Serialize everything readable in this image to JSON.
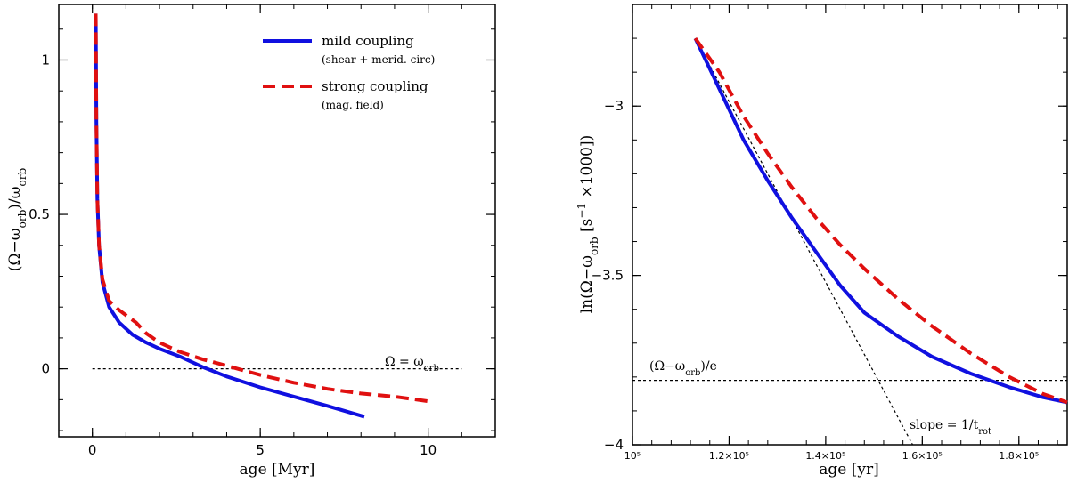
{
  "colors": {
    "mild": "#1010e0",
    "strong": "#e01010",
    "axis": "#000000"
  },
  "chart_data": [
    {
      "type": "line",
      "xlabel": "age [Myr]",
      "ylabel": "(Ω−ω_orb)/ω_orb",
      "xlim": [
        -1,
        12
      ],
      "ylim": [
        -0.22,
        1.18
      ],
      "xticks": [
        0,
        5,
        10
      ],
      "xtick_labels": [
        "0",
        "5",
        "10"
      ],
      "yticks": [
        0,
        0.5,
        1
      ],
      "ytick_labels": [
        "0",
        "0.5",
        "1"
      ],
      "hline": {
        "y": 0,
        "x_from": 0,
        "x_to": 11,
        "label": "Ω = ω_orb"
      },
      "legend": [
        {
          "name": "mild coupling",
          "sub": "(shear + merid. circ)",
          "style": "solid"
        },
        {
          "name": "strong coupling",
          "sub": "(mag. field)",
          "style": "dashed"
        }
      ],
      "series": [
        {
          "name": "mild coupling",
          "style": "solid",
          "x": [
            0.1,
            0.12,
            0.15,
            0.2,
            0.3,
            0.5,
            0.8,
            1.2,
            1.6,
            2.0,
            2.6,
            3.3,
            4.0,
            5.0,
            6.0,
            7.0,
            8.1
          ],
          "y": [
            1.15,
            0.8,
            0.55,
            0.4,
            0.28,
            0.2,
            0.15,
            0.11,
            0.085,
            0.065,
            0.04,
            0.005,
            -0.025,
            -0.06,
            -0.09,
            -0.12,
            -0.155
          ]
        },
        {
          "name": "strong coupling",
          "style": "dashed",
          "x": [
            0.1,
            0.12,
            0.15,
            0.2,
            0.3,
            0.5,
            0.8,
            1.3,
            1.6,
            2.0,
            2.6,
            3.3,
            4.0,
            5.0,
            6.0,
            7.0,
            8.0,
            9.0,
            10.0
          ],
          "y": [
            1.15,
            0.8,
            0.55,
            0.4,
            0.29,
            0.22,
            0.19,
            0.15,
            0.115,
            0.085,
            0.055,
            0.03,
            0.01,
            -0.02,
            -0.045,
            -0.065,
            -0.08,
            -0.09,
            -0.105
          ]
        }
      ]
    },
    {
      "type": "line",
      "xlabel": "age [yr]",
      "ylabel": "ln(Ω−ω_orb [s⁻¹ ×1000])",
      "xlim": [
        100000,
        190000
      ],
      "ylim": [
        -4,
        -2.7
      ],
      "xticks": [
        100000,
        120000,
        140000,
        160000,
        180000
      ],
      "xtick_labels": [
        "10⁵",
        "1.2×10⁵",
        "1.4×10⁵",
        "1.6×10⁵",
        "1.8×10⁵"
      ],
      "yticks": [
        -4,
        -3.5,
        -3
      ],
      "ytick_labels": [
        "−4",
        "−3.5",
        "−3"
      ],
      "hline": {
        "y": -3.81,
        "label": "(Ω−ω_orb)/e"
      },
      "tangent": {
        "x": [
          113000,
          158000
        ],
        "y": [
          -2.8,
          -4.0
        ],
        "label": "slope = 1/t_rot"
      },
      "series": [
        {
          "name": "mild coupling",
          "style": "solid",
          "x": [
            113000,
            118000,
            123000,
            128000,
            133000,
            138000,
            143000,
            148000,
            155000,
            162000,
            170000,
            178000,
            185000,
            190000
          ],
          "y": [
            -2.8,
            -2.95,
            -3.1,
            -3.22,
            -3.33,
            -3.43,
            -3.53,
            -3.61,
            -3.68,
            -3.74,
            -3.79,
            -3.83,
            -3.86,
            -3.875
          ]
        },
        {
          "name": "strong coupling",
          "style": "dashed",
          "x": [
            113000,
            118000,
            123000,
            128000,
            133000,
            138000,
            143000,
            148000,
            155000,
            162000,
            170000,
            178000,
            185000,
            190000
          ],
          "y": [
            -2.8,
            -2.9,
            -3.03,
            -3.14,
            -3.24,
            -3.33,
            -3.41,
            -3.48,
            -3.57,
            -3.65,
            -3.73,
            -3.8,
            -3.85,
            -3.875
          ]
        }
      ]
    }
  ]
}
